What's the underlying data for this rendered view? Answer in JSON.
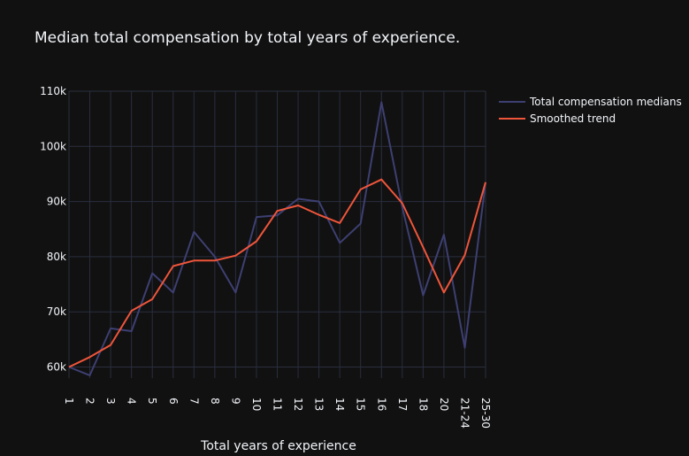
{
  "chart_data": {
    "type": "line",
    "title": "Median total compensation by total years of experience.",
    "xlabel": "Total years of experience",
    "ylabel": "",
    "categories": [
      "1",
      "2",
      "3",
      "4",
      "5",
      "6",
      "7",
      "8",
      "9",
      "10",
      "11",
      "12",
      "13",
      "14",
      "15",
      "16",
      "17",
      "18",
      "20",
      "21-24",
      "25-30"
    ],
    "yticks": [
      {
        "value": 60000,
        "label": "60k"
      },
      {
        "value": 70000,
        "label": "70k"
      },
      {
        "value": 80000,
        "label": "80k"
      },
      {
        "value": 90000,
        "label": "90k"
      },
      {
        "value": 100000,
        "label": "100k"
      },
      {
        "value": 110000,
        "label": "110k"
      }
    ],
    "ylim": [
      58000,
      110000
    ],
    "grid": true,
    "legend_position": "top-right",
    "series": [
      {
        "name": "Total compensation medians",
        "color": "#3d3f72",
        "values": [
          60000,
          58500,
          67000,
          66500,
          77000,
          73500,
          84500,
          80000,
          73500,
          87200,
          87500,
          90500,
          90000,
          82500,
          86000,
          108000,
          89000,
          73000,
          84000,
          63500,
          93500
        ]
      },
      {
        "name": "Smoothed trend",
        "color": "#ef553b",
        "values": [
          60000,
          61800,
          64000,
          70200,
          72300,
          78300,
          79300,
          79300,
          80200,
          82800,
          88300,
          89300,
          87600,
          86100,
          92200,
          94000,
          89700,
          81700,
          73500,
          80300,
          93500
        ]
      }
    ]
  }
}
